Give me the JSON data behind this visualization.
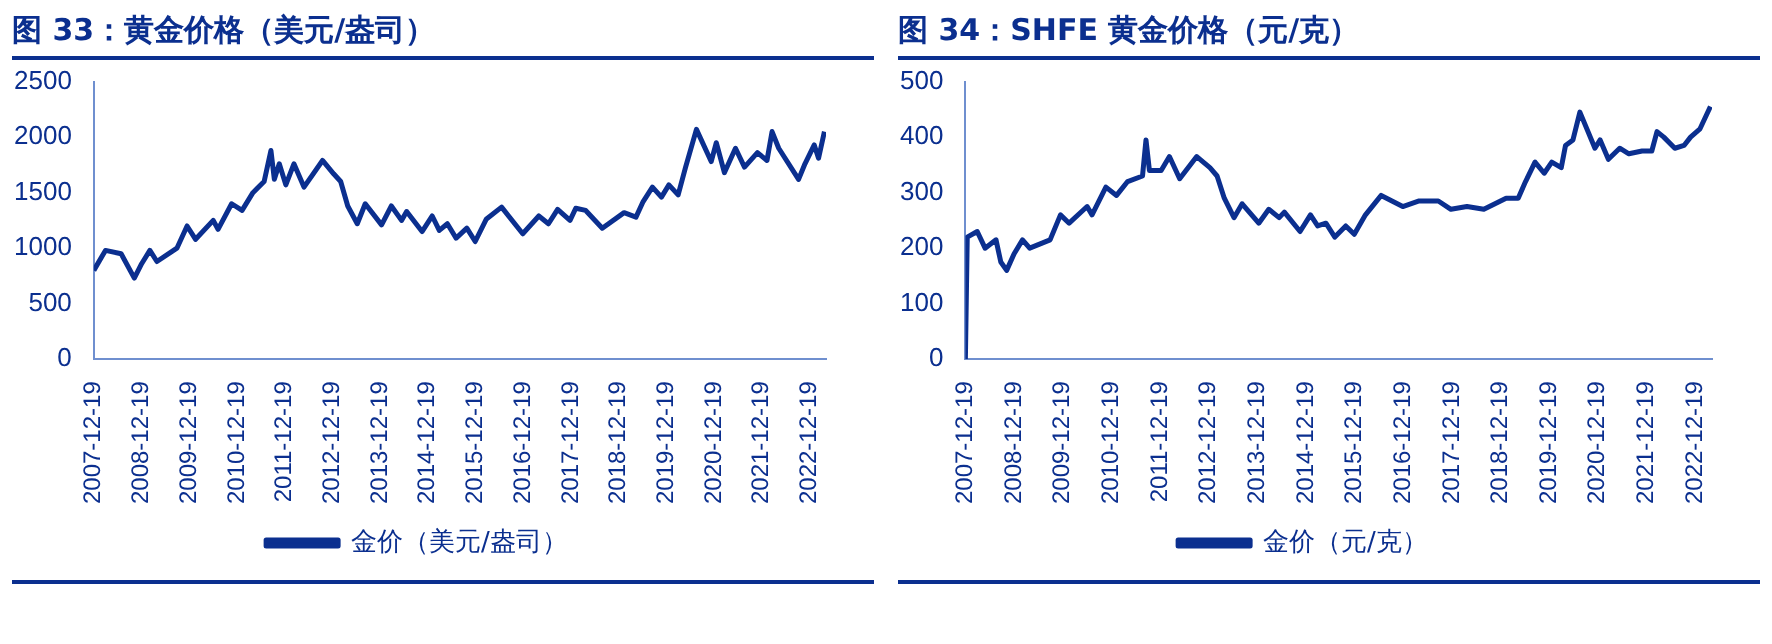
{
  "chart_data": [
    {
      "type": "line",
      "title": "图 33：黄金价格（美元/盎司）",
      "legend": "bottom",
      "grid": false,
      "marker": "none",
      "line_style": "solid",
      "x": [
        "2007-12-19",
        "2008-03-17",
        "2008-07-15",
        "2008-10-24",
        "2008-12-19",
        "2009-02-20",
        "2009-04-15",
        "2009-09-15",
        "2009-12-02",
        "2010-02-05",
        "2010-06-20",
        "2010-07-27",
        "2010-11-08",
        "2011-01-27",
        "2011-04-20",
        "2011-07-15",
        "2011-09-05",
        "2011-10-01",
        "2011-11-08",
        "2011-12-28",
        "2012-02-28",
        "2012-05-15",
        "2012-10-04",
        "2012-12-28",
        "2013-02-20",
        "2013-04-15",
        "2013-06-27",
        "2013-08-27",
        "2013-12-30",
        "2014-03-15",
        "2014-06-01",
        "2014-07-10",
        "2014-11-05",
        "2015-01-22",
        "2015-03-17",
        "2015-05-18",
        "2015-07-24",
        "2015-10-14",
        "2015-12-17",
        "2016-03-10",
        "2016-07-06",
        "2016-12-15",
        "2017-04-17",
        "2017-06-30",
        "2017-09-08",
        "2017-12-12",
        "2018-01-25",
        "2018-04-11",
        "2018-08-16",
        "2019-01-30",
        "2019-05-01",
        "2019-06-25",
        "2019-09-04",
        "2019-11-12",
        "2020-01-08",
        "2020-03-19",
        "2020-05-15",
        "2020-08-06",
        "2020-11-27",
        "2021-01-05",
        "2021-03-08",
        "2021-06-01",
        "2021-08-09",
        "2021-11-16",
        "2022-01-28",
        "2022-03-08",
        "2022-04-28",
        "2022-09-27",
        "2022-11-15",
        "2023-01-25",
        "2023-02-27",
        "2023-04-13"
      ],
      "series": [
        {
          "name": "金价（美元/盎司）",
          "color": "#0b2f8f",
          "values": [
            800,
            980,
            950,
            730,
            860,
            980,
            880,
            1000,
            1200,
            1080,
            1250,
            1170,
            1400,
            1340,
            1500,
            1600,
            1880,
            1620,
            1760,
            1570,
            1760,
            1550,
            1790,
            1670,
            1600,
            1380,
            1220,
            1400,
            1210,
            1380,
            1250,
            1330,
            1150,
            1290,
            1160,
            1220,
            1090,
            1180,
            1060,
            1260,
            1370,
            1130,
            1290,
            1220,
            1350,
            1250,
            1360,
            1340,
            1180,
            1320,
            1280,
            1420,
            1550,
            1460,
            1570,
            1480,
            1730,
            2070,
            1780,
            1950,
            1680,
            1900,
            1730,
            1860,
            1790,
            2050,
            1900,
            1620,
            1760,
            1930,
            1810,
            2050
          ]
        }
      ],
      "xlim": [
        "2007-12-19",
        "2023-04-25"
      ],
      "xticks": [
        "2007-12-19",
        "2008-12-19",
        "2009-12-19",
        "2010-12-19",
        "2011-12-19",
        "2012-12-19",
        "2013-12-19",
        "2014-12-19",
        "2015-12-19",
        "2016-12-19",
        "2017-12-19",
        "2018-12-19",
        "2019-12-19",
        "2020-12-19",
        "2021-12-19",
        "2022-12-19"
      ],
      "ylim": [
        0,
        2500
      ],
      "yticks": [
        0,
        500,
        1000,
        1500,
        2000,
        2500
      ]
    },
    {
      "type": "line",
      "title": "图 34：SHFE 黄金价格（元/克）",
      "legend": "bottom",
      "grid": false,
      "marker": "none",
      "line_style": "solid",
      "x": [
        "2007-12-19",
        "2008-01-02",
        "2008-03-17",
        "2008-05-15",
        "2008-08-05",
        "2008-09-10",
        "2008-10-24",
        "2008-12-19",
        "2009-02-20",
        "2009-04-15",
        "2009-09-15",
        "2009-12-02",
        "2010-02-05",
        "2010-06-20",
        "2010-07-27",
        "2010-11-08",
        "2011-01-27",
        "2011-04-20",
        "2011-08-10",
        "2011-09-05",
        "2011-10-01",
        "2011-12-28",
        "2012-02-28",
        "2012-05-15",
        "2012-09-20",
        "2012-12-28",
        "2013-02-20",
        "2013-04-15",
        "2013-06-27",
        "2013-08-27",
        "2013-12-30",
        "2014-03-15",
        "2014-06-01",
        "2014-07-10",
        "2014-11-05",
        "2015-01-22",
        "2015-03-17",
        "2015-05-18",
        "2015-07-24",
        "2015-10-14",
        "2015-12-17",
        "2016-03-10",
        "2016-07-06",
        "2016-12-15",
        "2017-04-17",
        "2017-09-08",
        "2017-12-12",
        "2018-04-11",
        "2018-08-16",
        "2019-01-30",
        "2019-05-01",
        "2019-06-25",
        "2019-09-04",
        "2019-11-12",
        "2020-01-08",
        "2020-03-19",
        "2020-04-20",
        "2020-06-15",
        "2020-08-06",
        "2020-11-27",
        "2021-01-05",
        "2021-03-08",
        "2021-06-01",
        "2021-08-09",
        "2021-11-16",
        "2022-01-28",
        "2022-03-08",
        "2022-04-28",
        "2022-07-20",
        "2022-09-27",
        "2022-11-15",
        "2023-01-25",
        "2023-04-13"
      ],
      "series": [
        {
          "name": "金价（元/克）",
          "color": "#0b2f8f",
          "values": [
            0,
            220,
            230,
            200,
            215,
            175,
            160,
            190,
            215,
            200,
            215,
            260,
            245,
            275,
            260,
            310,
            295,
            320,
            330,
            395,
            340,
            340,
            365,
            325,
            365,
            345,
            330,
            290,
            255,
            280,
            245,
            270,
            255,
            265,
            230,
            260,
            240,
            245,
            220,
            240,
            225,
            260,
            295,
            275,
            285,
            285,
            270,
            275,
            270,
            290,
            290,
            320,
            355,
            335,
            355,
            345,
            385,
            395,
            445,
            380,
            395,
            360,
            380,
            370,
            375,
            375,
            410,
            400,
            380,
            385,
            400,
            415,
            455
          ]
        }
      ],
      "xlim": [
        "2007-12-19",
        "2023-04-25"
      ],
      "xticks": [
        "2007-12-19",
        "2008-12-19",
        "2009-12-19",
        "2010-12-19",
        "2011-12-19",
        "2012-12-19",
        "2013-12-19",
        "2014-12-19",
        "2015-12-19",
        "2016-12-19",
        "2017-12-19",
        "2018-12-19",
        "2019-12-19",
        "2020-12-19",
        "2021-12-19",
        "2022-12-19"
      ],
      "ylim": [
        0,
        500
      ],
      "yticks": [
        0,
        100,
        200,
        300,
        400,
        500
      ]
    }
  ]
}
